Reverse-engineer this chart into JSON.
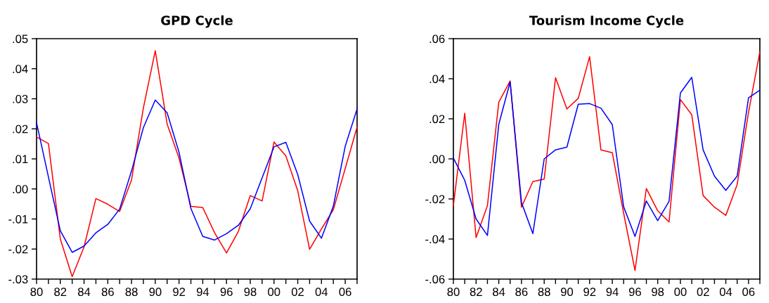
{
  "chart_data": [
    {
      "type": "line",
      "title": "GPD Cycle",
      "x": [
        1980,
        1981,
        1982,
        1983,
        1984,
        1985,
        1986,
        1987,
        1988,
        1989,
        1990,
        1991,
        1992,
        1993,
        1994,
        1995,
        1996,
        1997,
        1998,
        1999,
        2000,
        2001,
        2002,
        2003,
        2004,
        2005,
        2006,
        2007
      ],
      "series": [
        {
          "color": "#ff0000",
          "values": [
            0.0173,
            0.0151,
            -0.0166,
            -0.0292,
            -0.0193,
            -0.0032,
            -0.0051,
            -0.0075,
            0.003,
            0.027,
            0.046,
            0.0216,
            0.0103,
            -0.0058,
            -0.0062,
            -0.0146,
            -0.0213,
            -0.0141,
            -0.0022,
            -0.004,
            0.0156,
            0.011,
            -0.0006,
            -0.0201,
            -0.0133,
            -0.0069,
            0.0068,
            0.0206
          ]
        },
        {
          "color": "#0000ff",
          "values": [
            0.022,
            0.004,
            -0.0139,
            -0.0211,
            -0.019,
            -0.0146,
            -0.0118,
            -0.0067,
            0.006,
            0.0204,
            0.0296,
            0.0253,
            0.0122,
            -0.0065,
            -0.0158,
            -0.017,
            -0.0149,
            -0.0121,
            -0.0066,
            0.0037,
            0.014,
            0.0155,
            0.0048,
            -0.0107,
            -0.0164,
            -0.0057,
            0.0142,
            0.0266
          ]
        }
      ],
      "xlim": [
        1980,
        2007
      ],
      "xticks": [
        {
          "value": 1980,
          "label": "80"
        },
        {
          "value": 1981,
          "label": null
        },
        {
          "value": 1982,
          "label": "82"
        },
        {
          "value": 1983,
          "label": null
        },
        {
          "value": 1984,
          "label": "84"
        },
        {
          "value": 1985,
          "label": null
        },
        {
          "value": 1986,
          "label": "86"
        },
        {
          "value": 1987,
          "label": null
        },
        {
          "value": 1988,
          "label": "88"
        },
        {
          "value": 1989,
          "label": null
        },
        {
          "value": 1990,
          "label": "90"
        },
        {
          "value": 1991,
          "label": null
        },
        {
          "value": 1992,
          "label": "92"
        },
        {
          "value": 1993,
          "label": null
        },
        {
          "value": 1994,
          "label": "94"
        },
        {
          "value": 1995,
          "label": null
        },
        {
          "value": 1996,
          "label": "96"
        },
        {
          "value": 1997,
          "label": null
        },
        {
          "value": 1998,
          "label": "98"
        },
        {
          "value": 1999,
          "label": null
        },
        {
          "value": 2000,
          "label": "00"
        },
        {
          "value": 2001,
          "label": null
        },
        {
          "value": 2002,
          "label": "02"
        },
        {
          "value": 2003,
          "label": null
        },
        {
          "value": 2004,
          "label": "04"
        },
        {
          "value": 2005,
          "label": null
        },
        {
          "value": 2006,
          "label": "06"
        },
        {
          "value": 2007,
          "label": null
        }
      ],
      "ylim": [
        -0.03,
        0.05
      ],
      "yticks": [
        {
          "value": -0.03,
          "label": "-.03"
        },
        {
          "value": -0.02,
          "label": "-.02"
        },
        {
          "value": -0.01,
          "label": "-.01"
        },
        {
          "value": 0,
          "label": ".00"
        },
        {
          "value": 0.01,
          "label": ".01"
        },
        {
          "value": 0.02,
          "label": ".02"
        },
        {
          "value": 0.03,
          "label": ".03"
        },
        {
          "value": 0.04,
          "label": ".04"
        },
        {
          "value": 0.05,
          "label": ".05"
        }
      ],
      "grid": false,
      "legend": false,
      "line_style": "solid",
      "marker": "none"
    },
    {
      "type": "line",
      "title": "Tourism Income Cycle",
      "x": [
        1980,
        1981,
        1982,
        1983,
        1984,
        1985,
        1986,
        1987,
        1988,
        1989,
        1990,
        1991,
        1992,
        1993,
        1994,
        1995,
        1996,
        1997,
        1998,
        1999,
        2000,
        2001,
        2002,
        2003,
        2004,
        2005,
        2006,
        2007
      ],
      "series": [
        {
          "color": "#ff0000",
          "values": [
            -0.0232,
            0.0228,
            -0.0393,
            -0.0233,
            0.0283,
            0.0389,
            -0.0241,
            -0.0113,
            -0.0101,
            0.0405,
            0.0249,
            0.0302,
            0.051,
            0.0045,
            0.0031,
            -0.0271,
            -0.0557,
            -0.0148,
            -0.0259,
            -0.0315,
            0.0296,
            0.022,
            -0.0183,
            -0.0241,
            -0.0282,
            -0.0128,
            0.0232,
            0.0535
          ]
        },
        {
          "color": "#0000ff",
          "values": [
            0.0004,
            -0.0107,
            -0.03,
            -0.0382,
            0.0173,
            0.0384,
            -0.0218,
            -0.0373,
            0.0,
            0.0045,
            0.0059,
            0.0273,
            0.0276,
            0.0253,
            0.0171,
            -0.0239,
            -0.0387,
            -0.021,
            -0.0308,
            -0.0212,
            0.0329,
            0.0407,
            0.0045,
            -0.0086,
            -0.0157,
            -0.0086,
            0.0305,
            0.0343
          ]
        }
      ],
      "xlim": [
        1980,
        2007
      ],
      "xticks": [
        {
          "value": 1980,
          "label": "80"
        },
        {
          "value": 1981,
          "label": null
        },
        {
          "value": 1982,
          "label": "82"
        },
        {
          "value": 1983,
          "label": null
        },
        {
          "value": 1984,
          "label": "84"
        },
        {
          "value": 1985,
          "label": null
        },
        {
          "value": 1986,
          "label": "86"
        },
        {
          "value": 1987,
          "label": null
        },
        {
          "value": 1988,
          "label": "88"
        },
        {
          "value": 1989,
          "label": null
        },
        {
          "value": 1990,
          "label": "90"
        },
        {
          "value": 1991,
          "label": null
        },
        {
          "value": 1992,
          "label": "92"
        },
        {
          "value": 1993,
          "label": null
        },
        {
          "value": 1994,
          "label": "94"
        },
        {
          "value": 1995,
          "label": null
        },
        {
          "value": 1996,
          "label": "96"
        },
        {
          "value": 1997,
          "label": null
        },
        {
          "value": 1998,
          "label": "98"
        },
        {
          "value": 1999,
          "label": null
        },
        {
          "value": 2000,
          "label": "00"
        },
        {
          "value": 2001,
          "label": null
        },
        {
          "value": 2002,
          "label": "02"
        },
        {
          "value": 2003,
          "label": null
        },
        {
          "value": 2004,
          "label": "04"
        },
        {
          "value": 2005,
          "label": null
        },
        {
          "value": 2006,
          "label": "06"
        },
        {
          "value": 2007,
          "label": null
        }
      ],
      "ylim": [
        -0.06,
        0.06
      ],
      "yticks": [
        {
          "value": -0.06,
          "label": "-.06"
        },
        {
          "value": -0.04,
          "label": "-.04"
        },
        {
          "value": -0.02,
          "label": "-.02"
        },
        {
          "value": 0,
          "label": ".00"
        },
        {
          "value": 0.02,
          "label": ".02"
        },
        {
          "value": 0.04,
          "label": ".04"
        },
        {
          "value": 0.06,
          "label": ".06"
        }
      ],
      "grid": false,
      "legend": false,
      "line_style": "solid",
      "marker": "none"
    }
  ]
}
